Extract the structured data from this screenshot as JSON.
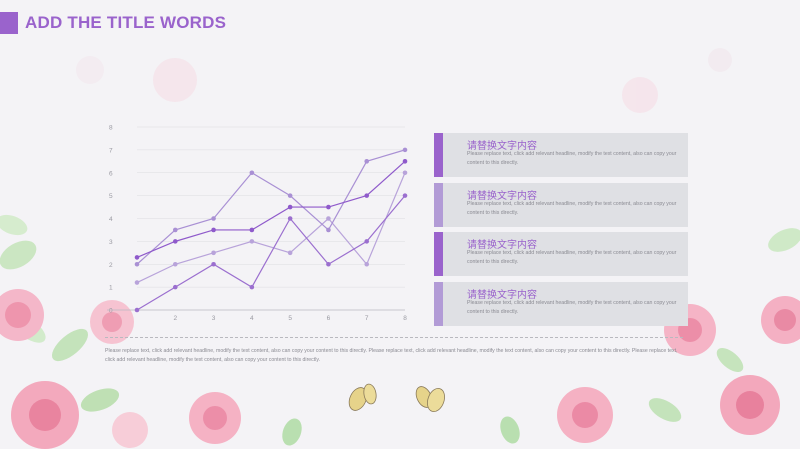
{
  "header": {
    "title": "ADD THE TITLE WORDS"
  },
  "colors": {
    "accent": "#9a63cc",
    "series_light": "#b29bd6",
    "series_mid": "#9a7bcc",
    "series_dark": "#8a55c9",
    "card_bg": "#dfe0e4"
  },
  "cards": [
    {
      "title": "请替换文字内容",
      "body": "Please replace text, click add relevant headline, modify the text content, also can copy your content to this directly."
    },
    {
      "title": "请替换文字内容",
      "body": "Please replace text, click add relevant headline, modify the text content, also can copy your content to this directly."
    },
    {
      "title": "请替换文字内容",
      "body": "Please replace text, click add relevant headline, modify the text content, also can copy your content to this directly."
    },
    {
      "title": "请替换文字内容",
      "body": "Please replace text, click add relevant headline, modify the text content, also can copy your content to this directly."
    }
  ],
  "footer": {
    "text": "Please replace text, click add relevant headline, modify the text content, also can copy your content to this directly. Please replace text, click add relevant headline, modify the text content, also can copy your content to this directly. Please replace text, click add relevant headline, modify the text content, also can copy your content to this directly."
  },
  "chart_data": {
    "type": "line",
    "x": [
      1,
      2,
      3,
      4,
      5,
      6,
      7,
      8
    ],
    "x_tick_labels": [
      "1",
      "2",
      "3",
      "4",
      "5",
      "6",
      "7",
      "8"
    ],
    "y_ticks": [
      0,
      1,
      2,
      3,
      4,
      5,
      6,
      7,
      8
    ],
    "ylim": [
      0,
      8
    ],
    "xlim": [
      1,
      8
    ],
    "grid": true,
    "legend": "none",
    "series": [
      {
        "values": [
          1.2,
          2.0,
          2.5,
          3.0,
          2.5,
          4.0,
          2.0,
          6.0
        ],
        "color": "#b8a3da"
      },
      {
        "values": [
          2.0,
          3.5,
          4.0,
          6.0,
          5.0,
          3.5,
          6.5,
          7.0
        ],
        "color": "#a990d4"
      },
      {
        "values": [
          2.3,
          3.0,
          3.5,
          3.5,
          4.5,
          4.5,
          5.0,
          6.5
        ],
        "color": "#8f5acb"
      },
      {
        "values": [
          0.0,
          1.0,
          2.0,
          1.0,
          4.0,
          2.0,
          3.0,
          5.0
        ],
        "color": "#9b6fcf"
      }
    ]
  }
}
